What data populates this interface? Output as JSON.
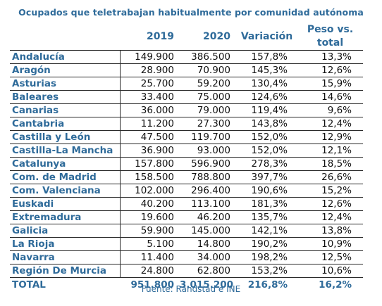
{
  "title": "Ocupados que teletrabajan habitualmente por comunidad autónoma",
  "headers": {
    "region": "",
    "y2019": "2019",
    "y2020": "2020",
    "variacion": "Variación",
    "peso": "Peso vs. total"
  },
  "rows": [
    {
      "region": "Andalucía",
      "y2019": "149.900",
      "y2020": "386.500",
      "variacion": "157,8%",
      "peso": "13,3%"
    },
    {
      "region": "Aragón",
      "y2019": "28.900",
      "y2020": "70.900",
      "variacion": "145,3%",
      "peso": "12,6%"
    },
    {
      "region": "Asturias",
      "y2019": "25.700",
      "y2020": "59.200",
      "variacion": "130,4%",
      "peso": "15,9%"
    },
    {
      "region": "Baleares",
      "y2019": "33.400",
      "y2020": "75.000",
      "variacion": "124,6%",
      "peso": "14,6%"
    },
    {
      "region": "Canarias",
      "y2019": "36.000",
      "y2020": "79.000",
      "variacion": "119,4%",
      "peso": "9,6%"
    },
    {
      "region": "Cantabria",
      "y2019": "11.200",
      "y2020": "27.300",
      "variacion": "143,8%",
      "peso": "12,4%"
    },
    {
      "region": "Castilla y León",
      "y2019": "47.500",
      "y2020": "119.700",
      "variacion": "152,0%",
      "peso": "12,9%"
    },
    {
      "region": "Castilla-La Mancha",
      "y2019": "36.900",
      "y2020": "93.000",
      "variacion": "152,0%",
      "peso": "12,1%"
    },
    {
      "region": "Catalunya",
      "y2019": "157.800",
      "y2020": "596.900",
      "variacion": "278,3%",
      "peso": "18,5%"
    },
    {
      "region": "Com. de Madrid",
      "y2019": "158.500",
      "y2020": "788.800",
      "variacion": "397,7%",
      "peso": "26,6%"
    },
    {
      "region": "Com. Valenciana",
      "y2019": "102.000",
      "y2020": "296.400",
      "variacion": "190,6%",
      "peso": "15,2%"
    },
    {
      "region": "Euskadi",
      "y2019": "40.200",
      "y2020": "113.100",
      "variacion": "181,3%",
      "peso": "12,6%"
    },
    {
      "region": "Extremadura",
      "y2019": "19.600",
      "y2020": "46.200",
      "variacion": "135,7%",
      "peso": "12,4%"
    },
    {
      "region": "Galicia",
      "y2019": "59.900",
      "y2020": "145.000",
      "variacion": "142,1%",
      "peso": "13,8%"
    },
    {
      "region": "La Rioja",
      "y2019": "5.100",
      "y2020": "14.800",
      "variacion": "190,2%",
      "peso": "10,9%"
    },
    {
      "region": "Navarra",
      "y2019": "11.400",
      "y2020": "34.000",
      "variacion": "198,2%",
      "peso": "12,5%"
    },
    {
      "region": "Región De Murcia",
      "y2019": "24.800",
      "y2020": "62.800",
      "variacion": "153,2%",
      "peso": "10,6%"
    }
  ],
  "total": {
    "region": "TOTAL",
    "y2019": "951.800",
    "y2020": "3.015.200",
    "variacion": "216,8%",
    "peso": "16,2%"
  },
  "source": "Fuente: Randstad e INE",
  "colors": {
    "accent": "#2f6b9a",
    "text": "#111111",
    "rule": "#1a1a1a"
  }
}
